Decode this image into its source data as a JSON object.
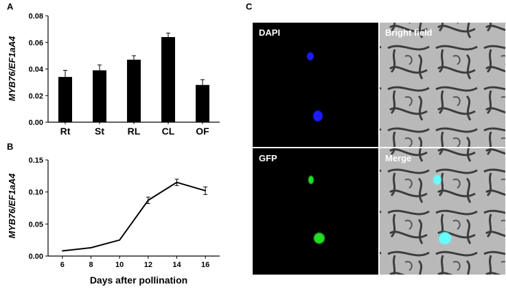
{
  "panels": {
    "a": "A",
    "b": "B",
    "c": "C"
  },
  "chart_data": [
    {
      "type": "bar",
      "panel": "A",
      "ylabel": "MYB76/EF1aA4",
      "categories": [
        "Rt",
        "St",
        "RL",
        "CL",
        "OF"
      ],
      "values": [
        0.034,
        0.039,
        0.047,
        0.064,
        0.028
      ],
      "errors": [
        0.005,
        0.004,
        0.003,
        0.003,
        0.004
      ],
      "ylim": [
        0,
        0.08
      ],
      "yticks": [
        "0.00",
        "0.02",
        "0.04",
        "0.06",
        "0.08"
      ],
      "ytick_values": [
        0,
        0.02,
        0.04,
        0.06,
        0.08
      ],
      "color": "#000000"
    },
    {
      "type": "line",
      "panel": "B",
      "ylabel": "MYB76/EF1aA4",
      "xlabel": "Days after pollination",
      "x": [
        6,
        8,
        10,
        12,
        14,
        16
      ],
      "values": [
        0.008,
        0.013,
        0.025,
        0.087,
        0.115,
        0.102
      ],
      "errors": [
        0,
        0,
        0,
        0.005,
        0.005,
        0.006
      ],
      "ylim": [
        0,
        0.15
      ],
      "xlim": [
        5,
        17
      ],
      "yticks": [
        "0.00",
        "0.05",
        "0.10",
        "0.15"
      ],
      "ytick_values": [
        0,
        0.05,
        0.1,
        0.15
      ],
      "xticks": [
        "6",
        "8",
        "10",
        "12",
        "14",
        "16"
      ],
      "xtick_values": [
        6,
        8,
        10,
        12,
        14,
        16
      ],
      "color": "#000000"
    }
  ],
  "micrographs": {
    "dapi": "DAPI",
    "bright_field": "Bright field",
    "gfp": "GFP",
    "merge": "Merge"
  },
  "colors": {
    "dapi": "#1a1aff",
    "gfp": "#22dd22",
    "merge": "#66ffff",
    "background": "#000000"
  }
}
